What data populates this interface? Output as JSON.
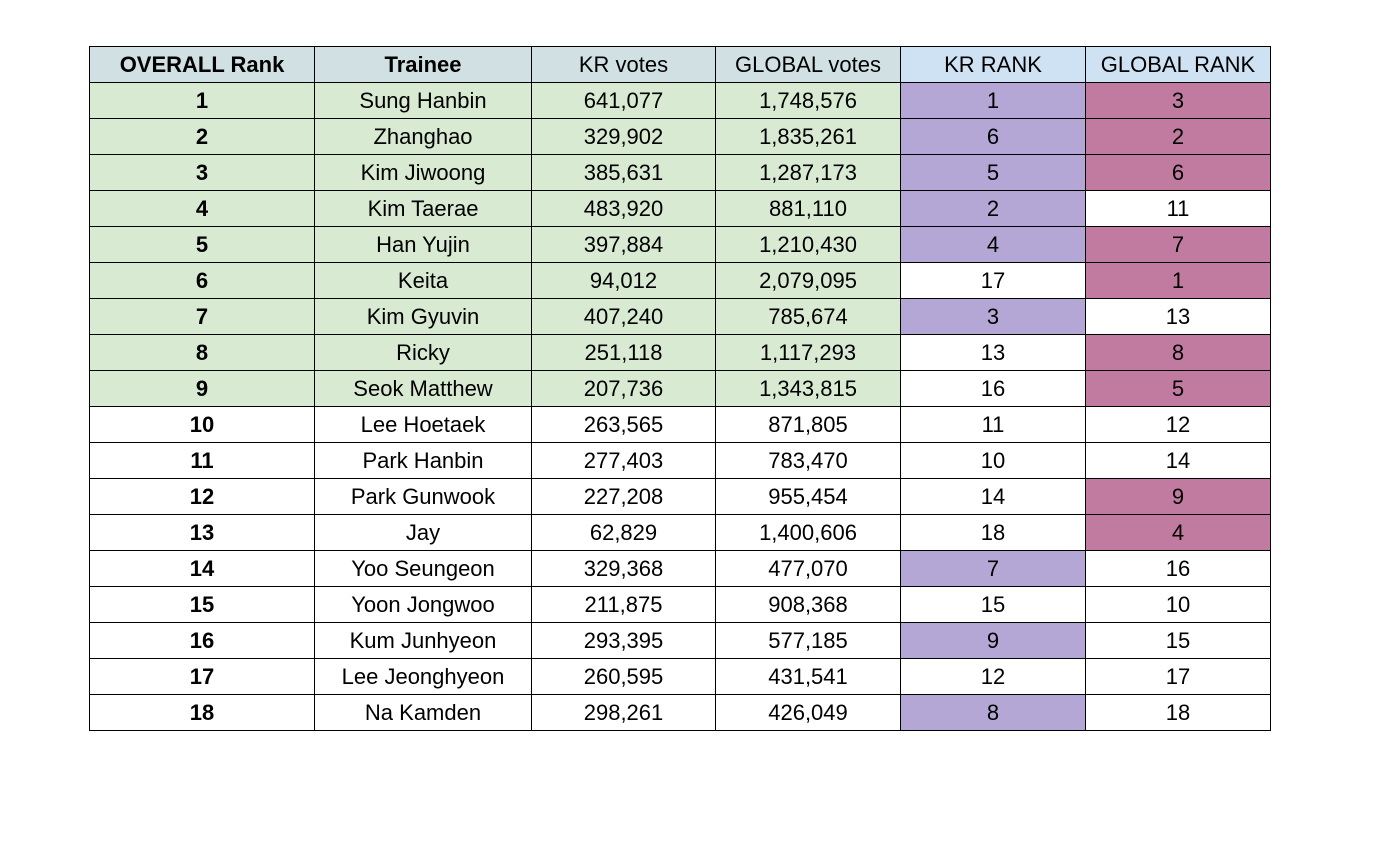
{
  "table": {
    "headers": [
      "OVERALL Rank",
      "Trainee",
      "KR votes",
      "GLOBAL votes",
      "KR RANK",
      "GLOBAL RANK"
    ],
    "colors": {
      "header": "#d0e0e3",
      "header_rank": "#cfe2f3",
      "top9_green": "#d9ead3",
      "kr_top10_purple": "#b4a7d6",
      "global_top9_pink": "#c27ba0",
      "plain": "#ffffff"
    },
    "highlight_rules": {
      "green_overall_ranks_up_to": 9,
      "purple_kr_rank_up_to": 9,
      "pink_global_rank_up_to": 9
    },
    "rows": [
      [
        "1",
        "Sung Hanbin",
        "641,077",
        "1,748,576",
        "1",
        "3"
      ],
      [
        "2",
        "Zhanghao",
        "329,902",
        "1,835,261",
        "6",
        "2"
      ],
      [
        "3",
        "Kim Jiwoong",
        "385,631",
        "1,287,173",
        "5",
        "6"
      ],
      [
        "4",
        "Kim Taerae",
        "483,920",
        "881,110",
        "2",
        "11"
      ],
      [
        "5",
        "Han Yujin",
        "397,884",
        "1,210,430",
        "4",
        "7"
      ],
      [
        "6",
        "Keita",
        "94,012",
        "2,079,095",
        "17",
        "1"
      ],
      [
        "7",
        "Kim Gyuvin",
        "407,240",
        "785,674",
        "3",
        "13"
      ],
      [
        "8",
        "Ricky",
        "251,118",
        "1,117,293",
        "13",
        "8"
      ],
      [
        "9",
        "Seok Matthew",
        "207,736",
        "1,343,815",
        "16",
        "5"
      ],
      [
        "10",
        "Lee Hoetaek",
        "263,565",
        "871,805",
        "11",
        "12"
      ],
      [
        "11",
        "Park Hanbin",
        "277,403",
        "783,470",
        "10",
        "14"
      ],
      [
        "12",
        "Park Gunwook",
        "227,208",
        "955,454",
        "14",
        "9"
      ],
      [
        "13",
        "Jay",
        "62,829",
        "1,400,606",
        "18",
        "4"
      ],
      [
        "14",
        "Yoo Seungeon",
        "329,368",
        "477,070",
        "7",
        "16"
      ],
      [
        "15",
        "Yoon Jongwoo",
        "211,875",
        "908,368",
        "15",
        "10"
      ],
      [
        "16",
        "Kum Junhyeon",
        "293,395",
        "577,185",
        "9",
        "15"
      ],
      [
        "17",
        "Lee Jeonghyeon",
        "260,595",
        "431,541",
        "12",
        "17"
      ],
      [
        "18",
        "Na Kamden",
        "298,261",
        "426,049",
        "8",
        "18"
      ]
    ]
  }
}
